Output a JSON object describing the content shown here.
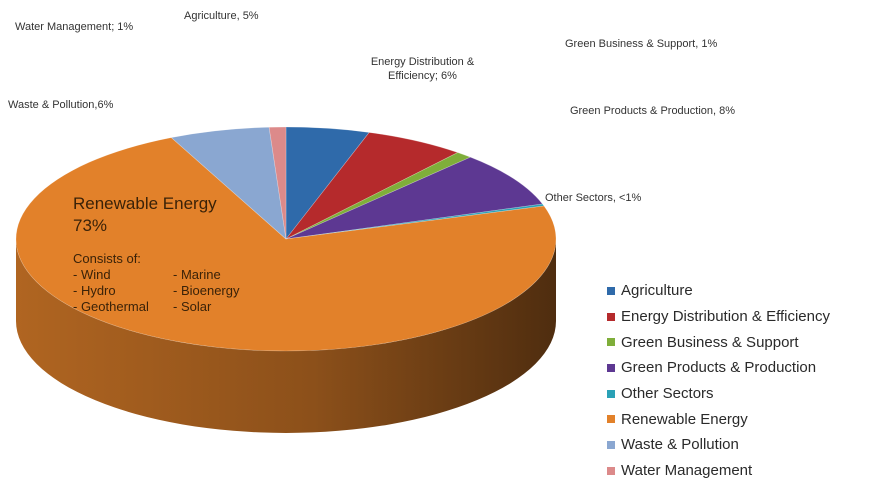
{
  "chart_data": {
    "type": "pie",
    "title": "",
    "legend_position": "right",
    "slices": [
      {
        "name": "Agriculture",
        "value": 5,
        "color": "#2f6aaa",
        "callout": "Agriculture, 5%"
      },
      {
        "name": "Energy Distribution & Efficiency",
        "value": 6,
        "color": "#b52a2c",
        "callout": "Energy Distribution & Efficiency; 6%"
      },
      {
        "name": "Green Business & Support",
        "value": 1,
        "color": "#7fae3a",
        "callout": "Green Business & Support, 1%"
      },
      {
        "name": "Green Products & Production",
        "value": 8,
        "color": "#5d3892",
        "callout": "Green Products & Production, 8%"
      },
      {
        "name": "Other Sectors",
        "value": 0.3,
        "color": "#2aa1b6",
        "callout": "Other Sectors, <1%"
      },
      {
        "name": "Renewable Energy",
        "value": 73,
        "color": "#e2812a",
        "callout": ""
      },
      {
        "name": "Waste & Pollution",
        "value": 6,
        "color": "#8aa7d1",
        "callout": "Waste & Pollution,6%"
      },
      {
        "name": "Water Management",
        "value": 1,
        "color": "#dc8a8a",
        "callout": "Water Management; 1%"
      }
    ],
    "main_label": {
      "title": "Renewable Energy",
      "percent": "73%",
      "consists_of": "Consists of:",
      "col1": [
        "- Wind",
        "- Hydro",
        "- Geothermal"
      ],
      "col2": [
        "- Marine",
        "- Bioenergy",
        "- Solar"
      ]
    }
  }
}
